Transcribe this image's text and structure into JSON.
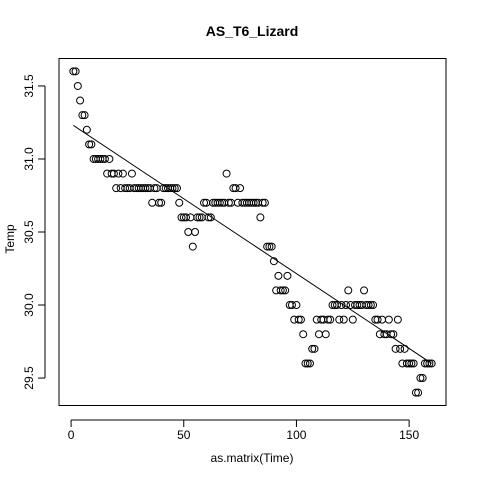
{
  "chart_data": {
    "type": "scatter",
    "title": "AS_T6_Lizard",
    "x_label": "as.matrix(Time)",
    "y_label": "Temp",
    "x": [
      1,
      2,
      3,
      4,
      5,
      6,
      7,
      8,
      9,
      10,
      11,
      12,
      13,
      14,
      15,
      16,
      17,
      18,
      19,
      20,
      21,
      22,
      23,
      24,
      25,
      26,
      27,
      28,
      29,
      30,
      31,
      32,
      33,
      34,
      35,
      36,
      37,
      38,
      39,
      40,
      41,
      42,
      43,
      44,
      45,
      46,
      47,
      48,
      49,
      50,
      51,
      52,
      53,
      54,
      55,
      56,
      57,
      58,
      59,
      60,
      61,
      62,
      63,
      64,
      65,
      66,
      67,
      68,
      69,
      70,
      71,
      72,
      73,
      74,
      75,
      76,
      77,
      78,
      79,
      80,
      81,
      82,
      83,
      84,
      85,
      86,
      87,
      88,
      89,
      90,
      91,
      92,
      93,
      94,
      95,
      96,
      97,
      98,
      99,
      100,
      101,
      102,
      103,
      104,
      105,
      106,
      107,
      108,
      109,
      110,
      111,
      112,
      113,
      114,
      115,
      116,
      117,
      118,
      119,
      120,
      121,
      122,
      123,
      124,
      125,
      126,
      127,
      128,
      129,
      130,
      131,
      132,
      133,
      134,
      135,
      136,
      137,
      138,
      139,
      140,
      141,
      142,
      143,
      144,
      145,
      146,
      147,
      148,
      149,
      150,
      151,
      152,
      153,
      154,
      155,
      156,
      157,
      158,
      159,
      160
    ],
    "values": [
      31.6,
      31.6,
      31.5,
      31.4,
      31.3,
      31.3,
      31.2,
      31.1,
      31.1,
      31.0,
      31.0,
      31.0,
      31.0,
      31.0,
      31.0,
      30.9,
      31.0,
      30.9,
      30.9,
      30.8,
      30.9,
      30.8,
      30.9,
      30.8,
      30.8,
      30.8,
      30.9,
      30.8,
      30.8,
      30.8,
      30.8,
      30.8,
      30.8,
      30.8,
      30.8,
      30.7,
      30.8,
      30.8,
      30.7,
      30.7,
      30.8,
      30.8,
      30.8,
      30.8,
      30.8,
      30.8,
      30.8,
      30.7,
      30.6,
      30.6,
      30.6,
      30.5,
      30.6,
      30.4,
      30.5,
      30.6,
      30.6,
      30.6,
      30.7,
      30.7,
      30.6,
      30.6,
      30.7,
      30.7,
      30.7,
      30.7,
      30.7,
      30.7,
      30.9,
      30.7,
      30.7,
      30.8,
      30.8,
      30.7,
      30.8,
      30.7,
      30.7,
      30.7,
      30.7,
      30.7,
      30.7,
      30.7,
      30.7,
      30.6,
      30.7,
      30.7,
      30.4,
      30.4,
      30.4,
      30.3,
      30.1,
      30.2,
      30.1,
      30.1,
      30.1,
      30.2,
      30.0,
      30.0,
      29.9,
      30.0,
      29.9,
      29.9,
      29.8,
      29.6,
      29.6,
      29.6,
      29.7,
      29.7,
      29.9,
      29.8,
      29.9,
      29.9,
      29.8,
      29.9,
      29.9,
      30.0,
      30.0,
      30.0,
      29.9,
      30.0,
      29.9,
      30.0,
      30.1,
      30.0,
      29.9,
      30.0,
      30.0,
      30.0,
      30.0,
      30.1,
      30.0,
      30.0,
      30.0,
      30.0,
      29.9,
      29.9,
      29.8,
      29.9,
      29.8,
      29.8,
      29.9,
      29.8,
      29.8,
      29.7,
      29.9,
      29.7,
      29.6,
      29.7,
      29.6,
      29.6,
      29.6,
      29.6,
      29.4,
      29.4,
      29.5,
      29.5,
      29.6,
      29.6,
      29.6,
      29.6
    ],
    "trend_line": {
      "x": [
        1,
        160
      ],
      "y": [
        31.23,
        29.6
      ]
    },
    "xlim": [
      -5.36,
      166.36
    ],
    "ylim": [
      29.312,
      31.688
    ],
    "xticks": [
      0,
      50,
      100,
      150
    ],
    "yticks": [
      {
        "value": 29.5,
        "label": "29.5"
      },
      {
        "value": 30,
        "label": "30.0"
      },
      {
        "value": 30.5,
        "label": "30.5"
      },
      {
        "value": 31,
        "label": "31.0"
      },
      {
        "value": 31.5,
        "label": "31.5"
      }
    ]
  }
}
